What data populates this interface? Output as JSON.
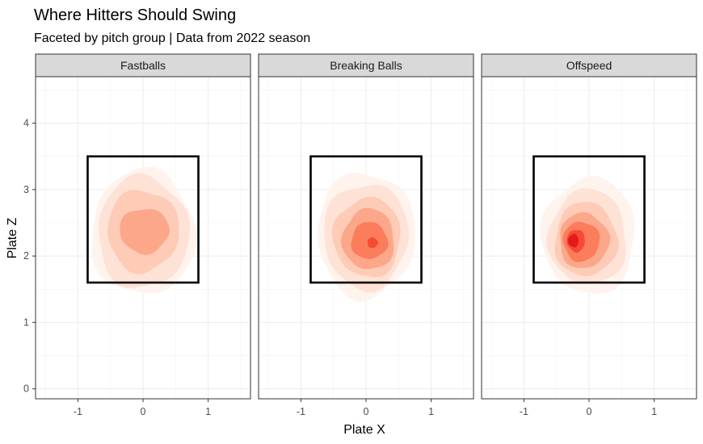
{
  "chart_data": {
    "type": "density_contour",
    "title": "Where Hitters Should Swing",
    "subtitle": "Faceted by pitch group | Data from 2022 season",
    "xlabel": "Plate X",
    "ylabel": "Plate Z",
    "xlim": [
      -1.65,
      1.65
    ],
    "ylim": [
      -0.15,
      4.7
    ],
    "x_ticks": [
      -1,
      0,
      1
    ],
    "y_ticks": [
      0,
      1,
      2,
      3,
      4
    ],
    "grid": true,
    "strike_zone": {
      "x": [
        -0.85,
        0.85
      ],
      "z": [
        1.6,
        3.5
      ]
    },
    "fill_colors": [
      "#FFF3EE",
      "#FEE2D6",
      "#FDCBB6",
      "#FCA78A",
      "#FB7D5C",
      "#F54B35",
      "#E31A1C"
    ],
    "facets": [
      {
        "name": "Fastballs",
        "levels": [
          {
            "cx": 0.0,
            "cz": 2.35,
            "rx": 0.8,
            "rz": 0.95,
            "color_index": 0
          },
          {
            "cx": 0.0,
            "cz": 2.35,
            "rx": 0.7,
            "rz": 0.85,
            "color_index": 1
          },
          {
            "cx": 0.0,
            "cz": 2.38,
            "rx": 0.55,
            "rz": 0.62,
            "color_index": 2
          },
          {
            "cx": 0.02,
            "cz": 2.38,
            "rx": 0.38,
            "rz": 0.34,
            "color_index": 3
          }
        ]
      },
      {
        "name": "Breaking Balls",
        "levels": [
          {
            "cx": 0.0,
            "cz": 2.32,
            "rx": 0.75,
            "rz": 0.95,
            "color_index": 0
          },
          {
            "cx": 0.0,
            "cz": 2.3,
            "rx": 0.65,
            "rz": 0.8,
            "color_index": 1
          },
          {
            "cx": 0.02,
            "cz": 2.28,
            "rx": 0.52,
            "rz": 0.6,
            "color_index": 2
          },
          {
            "cx": 0.04,
            "cz": 2.25,
            "rx": 0.4,
            "rz": 0.46,
            "color_index": 3
          },
          {
            "cx": 0.05,
            "cz": 2.23,
            "rx": 0.28,
            "rz": 0.28,
            "color_index": 4
          },
          {
            "cx": 0.1,
            "cz": 2.2,
            "rx": 0.08,
            "rz": 0.08,
            "color_index": 5
          }
        ]
      },
      {
        "name": "Offspeed",
        "levels": [
          {
            "cx": 0.0,
            "cz": 2.3,
            "rx": 0.72,
            "rz": 0.88,
            "color_index": 0
          },
          {
            "cx": -0.02,
            "cz": 2.28,
            "rx": 0.6,
            "rz": 0.72,
            "color_index": 1
          },
          {
            "cx": -0.05,
            "cz": 2.25,
            "rx": 0.48,
            "rz": 0.56,
            "color_index": 2
          },
          {
            "cx": -0.08,
            "cz": 2.23,
            "rx": 0.38,
            "rz": 0.42,
            "color_index": 3
          },
          {
            "cx": -0.12,
            "cz": 2.22,
            "rx": 0.28,
            "rz": 0.3,
            "color_index": 4
          },
          {
            "cx": -0.2,
            "cz": 2.23,
            "rx": 0.14,
            "rz": 0.17,
            "color_index": 5
          },
          {
            "cx": -0.24,
            "cz": 2.23,
            "rx": 0.08,
            "rz": 0.1,
            "color_index": 6
          }
        ]
      }
    ]
  }
}
